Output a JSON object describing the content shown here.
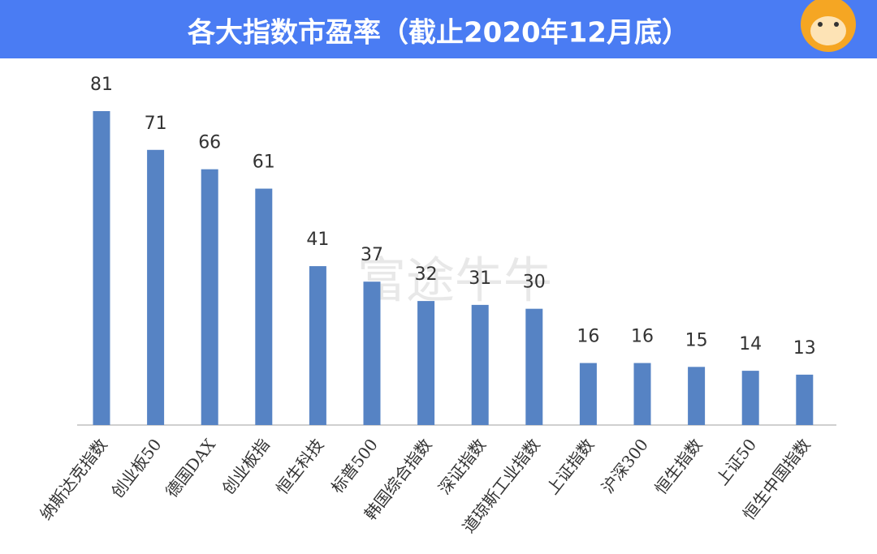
{
  "chart_data": {
    "type": "bar",
    "title": "各大指数市盈率（截止2020年12月底）",
    "watermark": "富途牛牛",
    "categories": [
      "纳斯达克指数",
      "创业板50",
      "德国DAX",
      "创业板指",
      "恒生科技",
      "标普500",
      "韩国综合指数",
      "深证指数",
      "道琼斯工业指数",
      "上证指数",
      "沪深300",
      "恒生指数",
      "上证50",
      "恒生中国指数"
    ],
    "values": [
      81,
      71,
      66,
      61,
      41,
      37,
      32,
      31,
      30,
      16,
      16,
      15,
      14,
      13
    ],
    "color": "#5683c4"
  }
}
